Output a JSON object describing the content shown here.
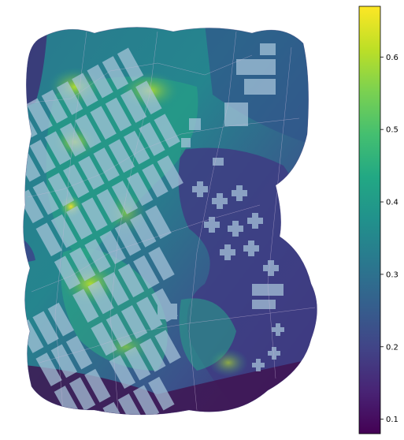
{
  "map": {
    "colormap": "viridis",
    "background": "#ffffff",
    "building_color": "#a9c6dc",
    "street_line_color": "#c9b8d9"
  },
  "colorbar": {
    "min": 0.08,
    "max": 0.67,
    "orientation": "vertical",
    "ticks": [
      {
        "value": 0.1,
        "label": "0.1"
      },
      {
        "value": 0.2,
        "label": "0.2"
      },
      {
        "value": 0.3,
        "label": "0.3"
      },
      {
        "value": 0.4,
        "label": "0.4"
      },
      {
        "value": 0.5,
        "label": "0.5"
      },
      {
        "value": 0.6,
        "label": "0.6"
      }
    ]
  }
}
